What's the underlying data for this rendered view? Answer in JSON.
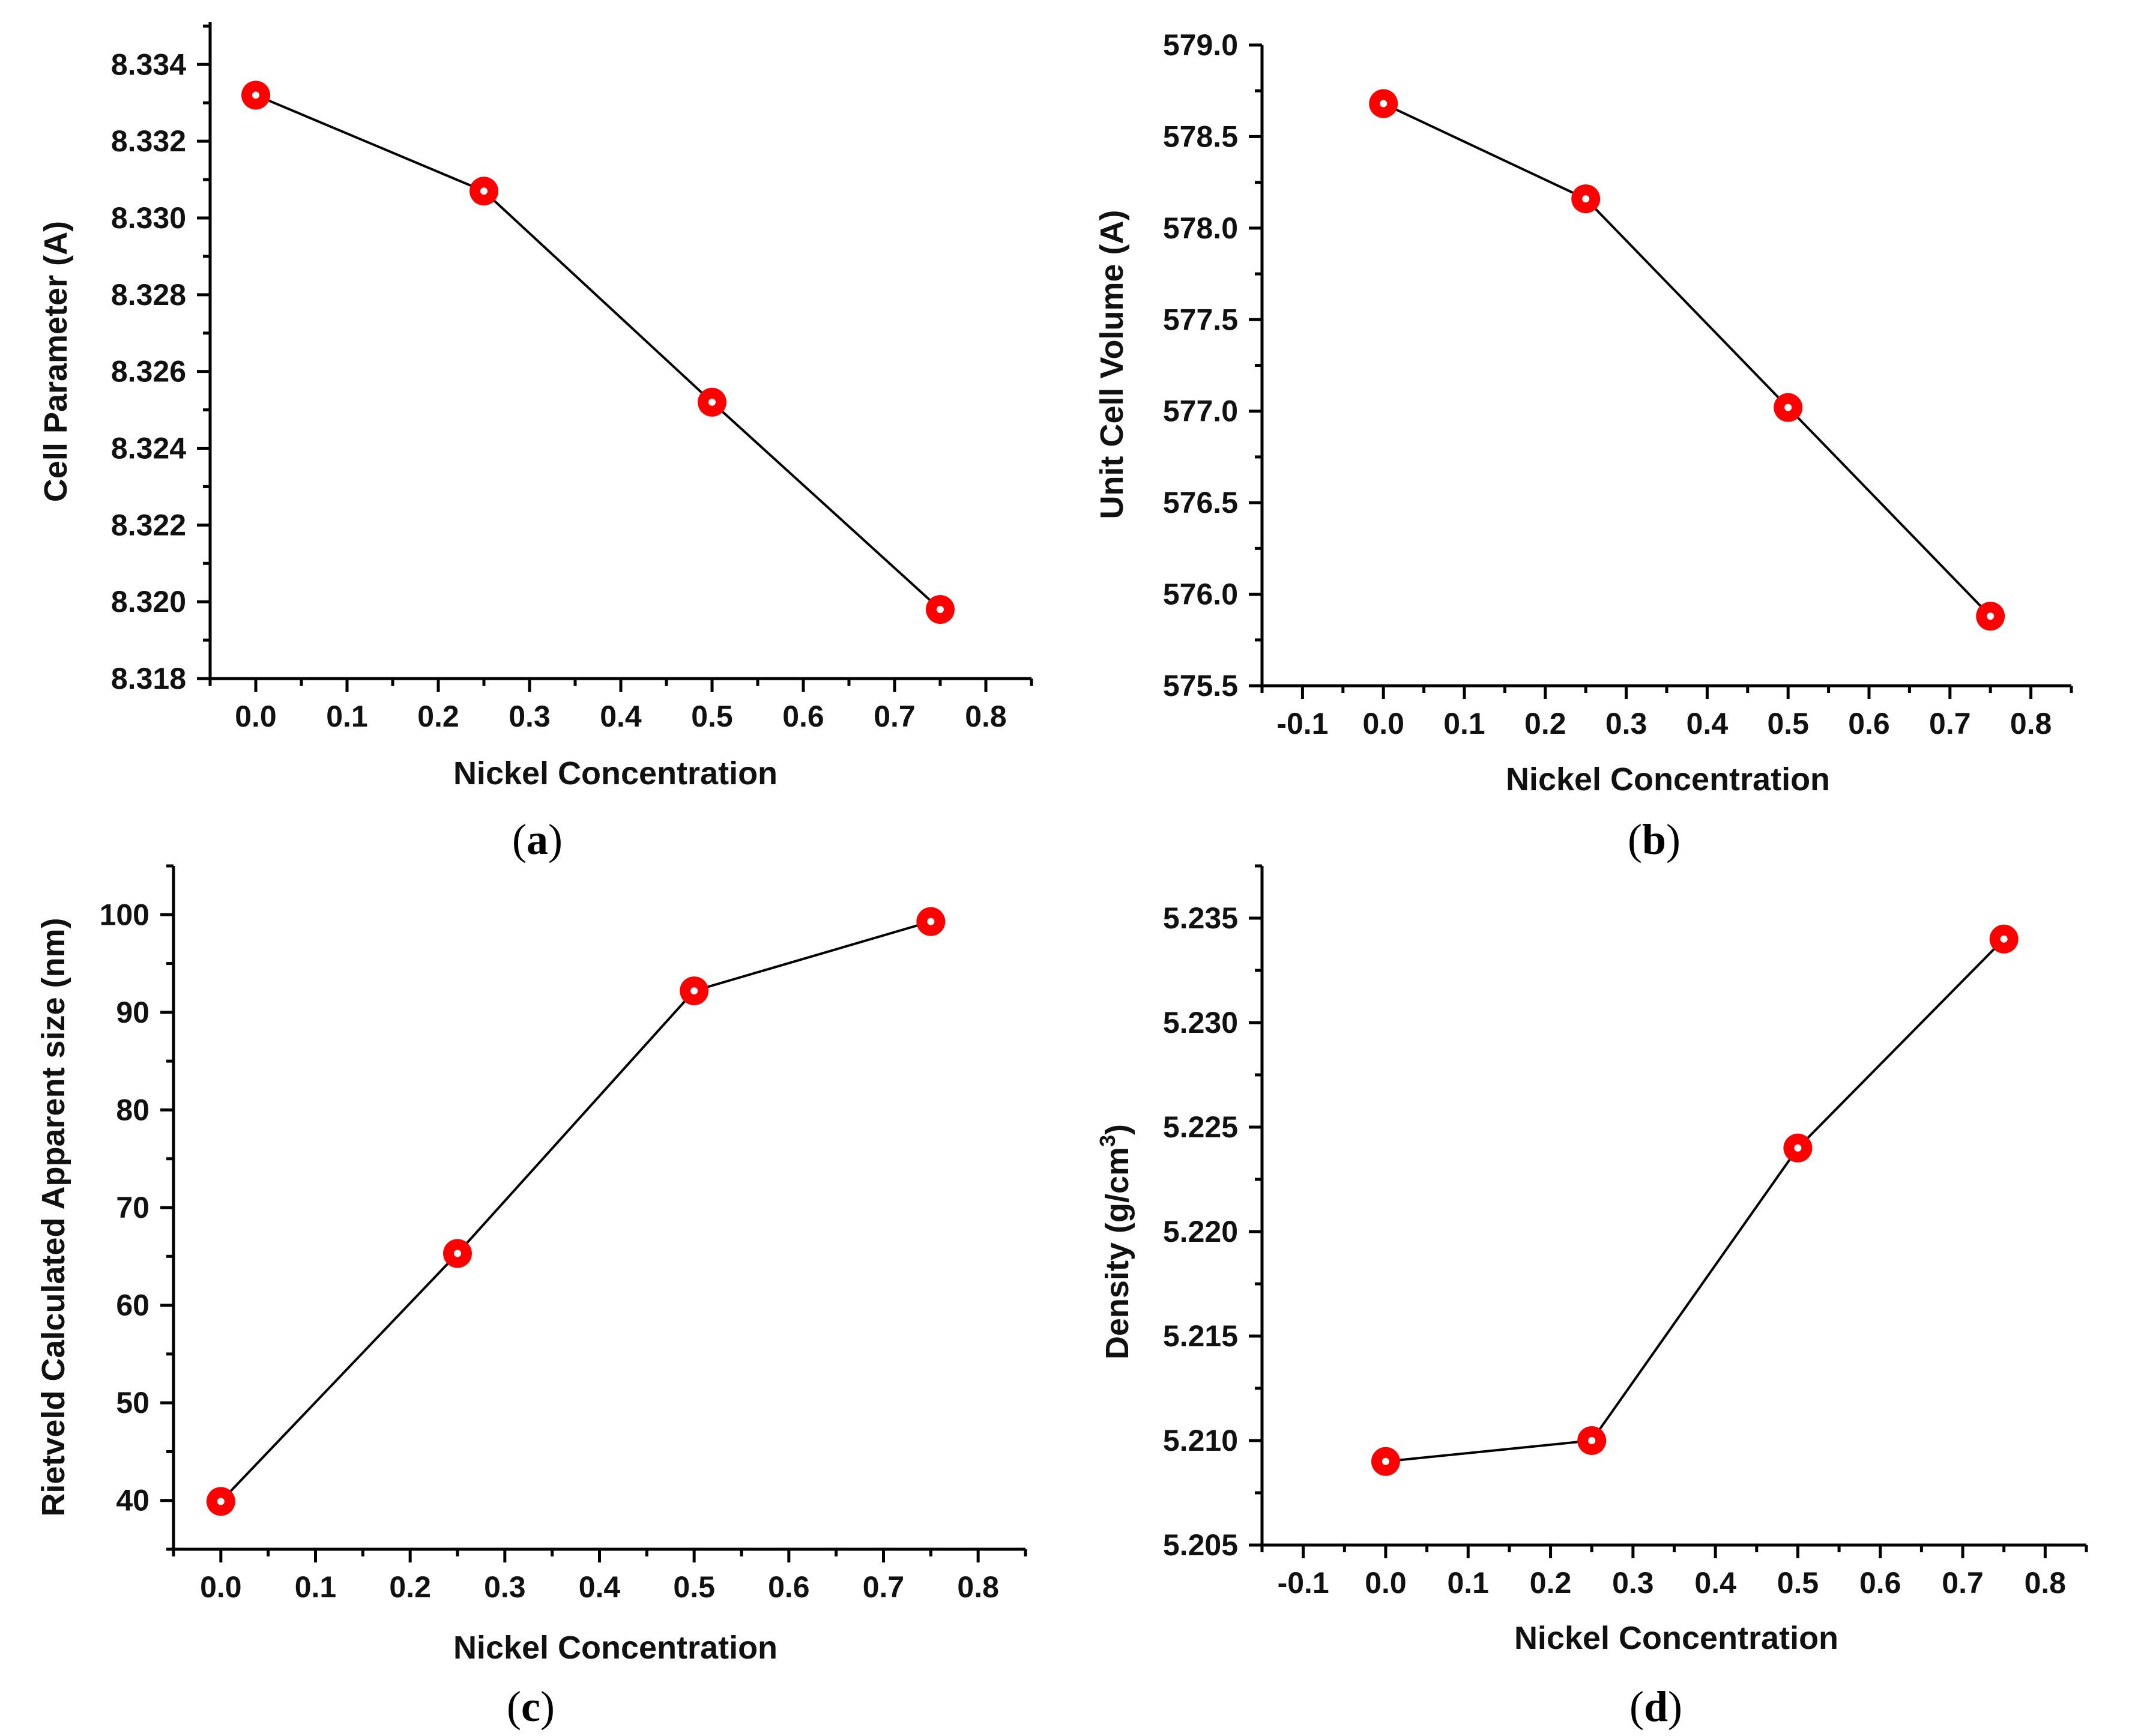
{
  "chart_data": [
    {
      "id": "a",
      "type": "line",
      "panel_label": "a",
      "xlabel": "Nickel Concentration",
      "ylabel": "Cell Parameter (A)",
      "x": [
        0.0,
        0.25,
        0.5,
        0.75
      ],
      "y": [
        8.3332,
        8.3307,
        8.3252,
        8.3198
      ],
      "xlim": [
        -0.05,
        0.85
      ],
      "ylim": [
        8.318,
        8.3351
      ],
      "xticks": [
        0.0,
        0.1,
        0.2,
        0.3,
        0.4,
        0.5,
        0.6,
        0.7,
        0.8
      ],
      "xtick_labels": [
        "0.0",
        "0.1",
        "0.2",
        "0.3",
        "0.4",
        "0.5",
        "0.6",
        "0.7",
        "0.8"
      ],
      "yticks": [
        8.318,
        8.32,
        8.322,
        8.324,
        8.326,
        8.328,
        8.33,
        8.332,
        8.334
      ],
      "ytick_labels": [
        "8.318",
        "8.320",
        "8.322",
        "8.324",
        "8.326",
        "8.328",
        "8.330",
        "8.332",
        "8.334"
      ],
      "marker_color": "#ff0000",
      "line_color": "#000000"
    },
    {
      "id": "b",
      "type": "line",
      "panel_label": "b",
      "xlabel": "Nickel Concentration",
      "ylabel": "Unit Cell Volume (A)",
      "x": [
        0.0,
        0.25,
        0.5,
        0.75
      ],
      "y": [
        578.68,
        578.16,
        577.02,
        575.88
      ],
      "xlim": [
        -0.15,
        0.85
      ],
      "ylim": [
        575.5,
        579.0
      ],
      "xticks": [
        -0.1,
        0.0,
        0.1,
        0.2,
        0.3,
        0.4,
        0.5,
        0.6,
        0.7,
        0.8
      ],
      "xtick_labels": [
        "-0.1",
        "0.0",
        "0.1",
        "0.2",
        "0.3",
        "0.4",
        "0.5",
        "0.6",
        "0.7",
        "0.8"
      ],
      "yticks": [
        575.5,
        576.0,
        576.5,
        577.0,
        577.5,
        578.0,
        578.5,
        579.0
      ],
      "ytick_labels": [
        "575.5",
        "576.0",
        "576.5",
        "577.0",
        "577.5",
        "578.0",
        "578.5",
        "579.0"
      ],
      "marker_color": "#ff0000",
      "line_color": "#000000"
    },
    {
      "id": "c",
      "type": "line",
      "panel_label": "c",
      "xlabel": "Nickel Concentration",
      "ylabel": "Rietveld Calculated Apparent size (nm)",
      "x": [
        0.0,
        0.25,
        0.5,
        0.75
      ],
      "y": [
        39.9,
        65.3,
        92.2,
        99.3
      ],
      "xlim": [
        -0.05,
        0.85
      ],
      "ylim": [
        35,
        105
      ],
      "xticks": [
        0.0,
        0.1,
        0.2,
        0.3,
        0.4,
        0.5,
        0.6,
        0.7,
        0.8
      ],
      "xtick_labels": [
        "0.0",
        "0.1",
        "0.2",
        "0.3",
        "0.4",
        "0.5",
        "0.6",
        "0.7",
        "0.8"
      ],
      "yticks": [
        40,
        50,
        60,
        70,
        80,
        90,
        100
      ],
      "ytick_labels": [
        "40",
        "50",
        "60",
        "70",
        "80",
        "90",
        "100"
      ],
      "marker_color": "#ff0000",
      "line_color": "#000000"
    },
    {
      "id": "d",
      "type": "line",
      "panel_label": "d",
      "xlabel": "Nickel Concentration",
      "ylabel_main": "Density (g/cm",
      "ylabel_sup": "3",
      "ylabel_end": ")",
      "x": [
        0.0,
        0.25,
        0.5,
        0.75
      ],
      "y": [
        5.209,
        5.21,
        5.224,
        5.234
      ],
      "xlim": [
        -0.15,
        0.85
      ],
      "ylim": [
        5.205,
        5.2375
      ],
      "xticks": [
        -0.1,
        0.0,
        0.1,
        0.2,
        0.3,
        0.4,
        0.5,
        0.6,
        0.7,
        0.8
      ],
      "xtick_labels": [
        "-0.1",
        "0.0",
        "0.1",
        "0.2",
        "0.3",
        "0.4",
        "0.5",
        "0.6",
        "0.7",
        "0.8"
      ],
      "yticks": [
        5.205,
        5.21,
        5.215,
        5.22,
        5.225,
        5.23,
        5.235
      ],
      "ytick_labels": [
        "5.205",
        "5.210",
        "5.215",
        "5.220",
        "5.225",
        "5.230",
        "5.235"
      ],
      "marker_color": "#ff0000",
      "line_color": "#000000"
    }
  ]
}
